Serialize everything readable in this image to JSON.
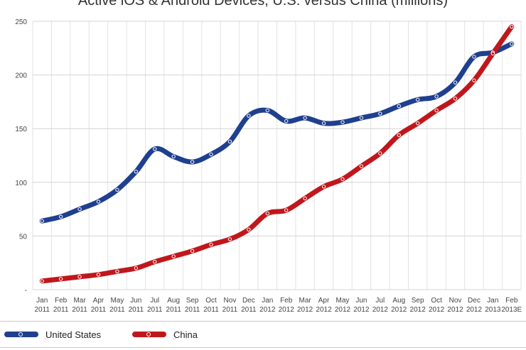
{
  "chart_data": {
    "type": "line",
    "title": "Active iOS & Android Devices, U.S. versus China (millions)",
    "xlabel": "",
    "ylabel": "",
    "ylim": [
      0,
      250
    ],
    "yticks": [
      {
        "value": 0,
        "label": "-"
      },
      {
        "value": 50,
        "label": "50"
      },
      {
        "value": 100,
        "label": "100"
      },
      {
        "value": 150,
        "label": "150"
      },
      {
        "value": 200,
        "label": "200"
      },
      {
        "value": 250,
        "label": "250"
      }
    ],
    "categories": [
      [
        "Jan",
        "2011"
      ],
      [
        "Feb",
        "2011"
      ],
      [
        "Mar",
        "2011"
      ],
      [
        "Apr",
        "2011"
      ],
      [
        "May",
        "2011"
      ],
      [
        "Jun",
        "2011"
      ],
      [
        "Jul",
        "2011"
      ],
      [
        "Aug",
        "2011"
      ],
      [
        "Sep",
        "2011"
      ],
      [
        "Oct",
        "2011"
      ],
      [
        "Nov",
        "2011"
      ],
      [
        "Dec",
        "2011"
      ],
      [
        "Jan",
        "2012"
      ],
      [
        "Feb",
        "2012"
      ],
      [
        "Mar",
        "2012"
      ],
      [
        "Apr",
        "2012"
      ],
      [
        "May",
        "2012"
      ],
      [
        "Jun",
        "2012"
      ],
      [
        "Jul",
        "2012"
      ],
      [
        "Aug",
        "2012"
      ],
      [
        "Sep",
        "2012"
      ],
      [
        "Oct",
        "2012"
      ],
      [
        "Nov",
        "2012"
      ],
      [
        "Dec",
        "2012"
      ],
      [
        "Jan",
        "2013"
      ],
      [
        "Feb",
        "2013E"
      ]
    ],
    "grid": true,
    "legend_position": "bottom-left",
    "series": [
      {
        "name": "United States",
        "color": "#1f3f8f",
        "values": [
          64,
          68,
          75,
          82,
          93,
          110,
          131,
          124,
          119,
          126,
          138,
          162,
          167,
          157,
          160,
          155,
          156,
          160,
          164,
          171,
          177,
          180,
          193,
          217,
          221,
          229
        ]
      },
      {
        "name": "China",
        "color": "#c0171c",
        "values": [
          8,
          10,
          12,
          14,
          17,
          20,
          26,
          31,
          36,
          42,
          47,
          56,
          71,
          74,
          85,
          96,
          103,
          115,
          127,
          144,
          155,
          167,
          178,
          195,
          220,
          245
        ]
      }
    ]
  }
}
